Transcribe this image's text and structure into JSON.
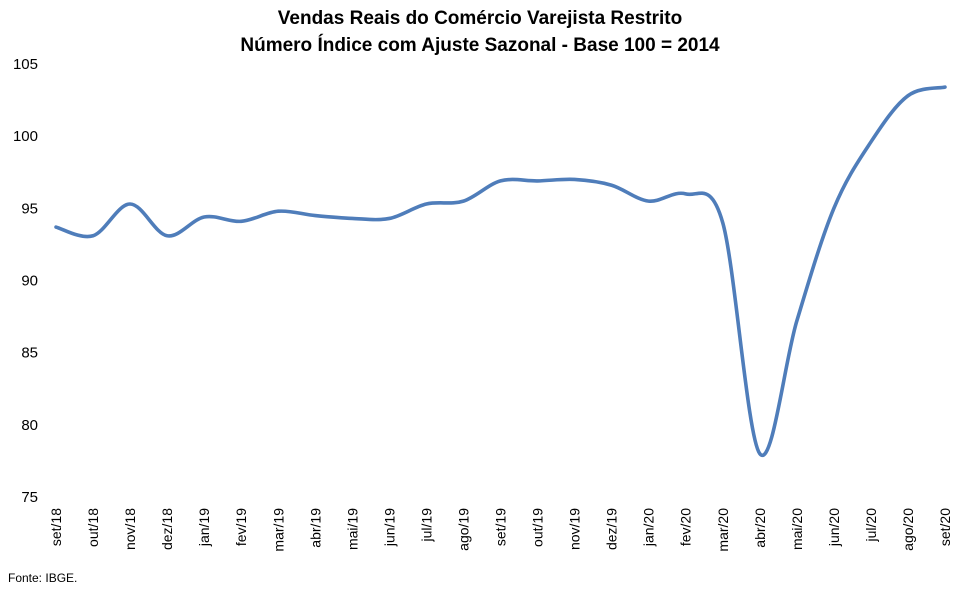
{
  "chart_data": {
    "type": "line",
    "title": "Vendas Reais do Comércio Varejista Restrito",
    "subtitle": "Número Índice com Ajuste Sazonal - Base 100 = 2014",
    "xlabel": "",
    "ylabel": "",
    "ylim": [
      75,
      105
    ],
    "yticks": [
      75,
      80,
      85,
      90,
      95,
      100,
      105
    ],
    "grid": false,
    "legend": "none",
    "categories": [
      "set/18",
      "out/18",
      "nov/18",
      "dez/18",
      "jan/19",
      "fev/19",
      "mar/19",
      "abr/19",
      "mai/19",
      "jun/19",
      "jul/19",
      "ago/19",
      "set/19",
      "out/19",
      "nov/19",
      "dez/19",
      "jan/20",
      "fev/20",
      "mar/20",
      "abr/20",
      "mai/20",
      "jun/20",
      "jul/20",
      "ago/20",
      "set/20"
    ],
    "series": [
      {
        "color": "#4F7DBA",
        "values": [
          93.7,
          93.1,
          95.3,
          93.1,
          94.4,
          94.1,
          94.8,
          94.5,
          94.3,
          94.3,
          95.3,
          95.5,
          96.9,
          96.9,
          97.0,
          96.6,
          95.5,
          96.0,
          94.0,
          78.0,
          87.2,
          95.0,
          99.6,
          102.8,
          103.4
        ]
      }
    ]
  },
  "source": "Fonte: IBGE."
}
